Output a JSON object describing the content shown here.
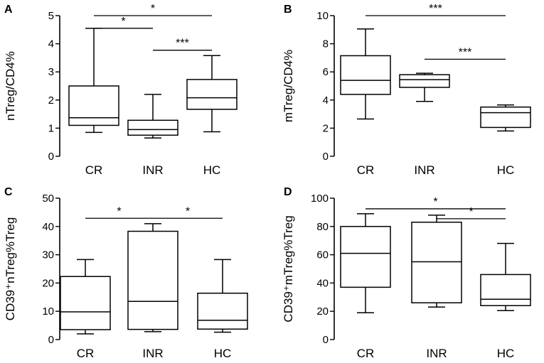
{
  "chart_data": [
    {
      "type": "boxplot",
      "panel": "A",
      "ylabel": "nTreg/CD4%",
      "ylim": [
        0,
        5
      ],
      "yticks": [
        "0",
        "1",
        "2",
        "3",
        "4",
        "5"
      ],
      "categories": [
        "CR",
        "INR",
        "HC"
      ],
      "boxes": [
        {
          "category": "CR",
          "min": 0.85,
          "q1": 1.1,
          "median": 1.37,
          "q3": 2.5,
          "max": 4.55
        },
        {
          "category": "INR",
          "min": 0.65,
          "q1": 0.75,
          "median": 0.95,
          "q3": 1.28,
          "max": 2.2
        },
        {
          "category": "HC",
          "min": 0.87,
          "q1": 1.67,
          "median": 2.08,
          "q3": 2.73,
          "max": 3.58
        }
      ],
      "significance": [
        {
          "from": "CR",
          "to": "HC",
          "y": 5.0,
          "label": "*"
        },
        {
          "from": "CR",
          "to": "INR",
          "y": 4.55,
          "label": "*"
        },
        {
          "from": "INR",
          "to": "HC",
          "y": 3.77,
          "label": "***"
        }
      ]
    },
    {
      "type": "boxplot",
      "panel": "B",
      "ylabel": "mTreg/CD4%",
      "ylim": [
        0,
        10
      ],
      "yticks": [
        "0",
        "2",
        "4",
        "6",
        "8",
        "10"
      ],
      "categories": [
        "CR",
        "INR",
        "HC"
      ],
      "boxes": [
        {
          "category": "CR",
          "min": 2.65,
          "q1": 4.4,
          "median": 5.4,
          "q3": 7.15,
          "max": 9.05
        },
        {
          "category": "INR",
          "min": 3.9,
          "q1": 4.9,
          "median": 5.45,
          "q3": 5.8,
          "max": 5.9
        },
        {
          "category": "HC",
          "min": 1.8,
          "q1": 2.05,
          "median": 3.1,
          "q3": 3.5,
          "max": 3.65
        }
      ],
      "significance": [
        {
          "from": "CR",
          "to": "HC",
          "y": 10.0,
          "label": "***"
        },
        {
          "from": "INR",
          "to": "HC",
          "y": 6.9,
          "label": "***"
        }
      ]
    },
    {
      "type": "boxplot",
      "panel": "C",
      "ylabel": "CD39⁺nTreg%Treg",
      "ylim": [
        0,
        50
      ],
      "yticks": [
        "0",
        "10",
        "20",
        "30",
        "40",
        "50"
      ],
      "categories": [
        "CR",
        "INR",
        "HC"
      ],
      "boxes": [
        {
          "category": "CR",
          "min": 2.0,
          "q1": 3.5,
          "median": 9.8,
          "q3": 22.3,
          "max": 28.3
        },
        {
          "category": "INR",
          "min": 2.8,
          "q1": 3.6,
          "median": 13.5,
          "q3": 38.3,
          "max": 41.0
        },
        {
          "category": "HC",
          "min": 2.6,
          "q1": 3.7,
          "median": 6.8,
          "q3": 16.4,
          "max": 28.3
        }
      ],
      "significance": [
        {
          "from": "CR",
          "to": "INR",
          "y": 42.9,
          "label": "*"
        },
        {
          "from": "INR",
          "to": "HC",
          "y": 42.9,
          "label": "*"
        }
      ]
    },
    {
      "type": "boxplot",
      "panel": "D",
      "ylabel": "CD39⁺mTreg%Treg",
      "ylim": [
        0,
        100
      ],
      "yticks": [
        "0",
        "20",
        "40",
        "60",
        "80",
        "100"
      ],
      "categories": [
        "CR",
        "INR",
        "HC"
      ],
      "boxes": [
        {
          "category": "CR",
          "min": 19.0,
          "q1": 37.0,
          "median": 61.0,
          "q3": 80.0,
          "max": 89.0
        },
        {
          "category": "INR",
          "min": 23.0,
          "q1": 26.0,
          "median": 55.0,
          "q3": 83.0,
          "max": 88.0
        },
        {
          "category": "HC",
          "min": 20.5,
          "q1": 24.0,
          "median": 28.5,
          "q3": 46.0,
          "max": 68.0
        }
      ],
      "significance": [
        {
          "from": "CR",
          "to": "HC",
          "y": 92.5,
          "label": "*"
        },
        {
          "from": "INR",
          "to": "HC",
          "y": 85.5,
          "label": "*"
        }
      ]
    }
  ]
}
